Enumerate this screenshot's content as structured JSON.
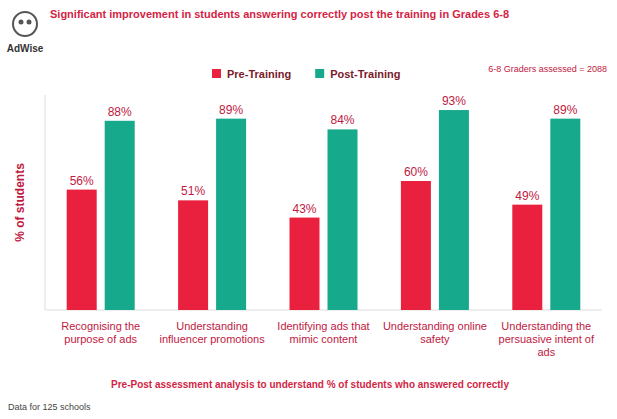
{
  "chart_data": {
    "type": "bar",
    "title": "Significant improvement in students answering correctly post the training in Grades 6-8",
    "logo": "AdWise",
    "note": "6-8 Graders assessed = 2088",
    "y_label": "% of students",
    "caption": "Pre-Post assessment analysis to understand % of students who answered correctly",
    "source": "Data for 125 schools",
    "categories": [
      "Recognising the purpose of ads",
      "Understanding influencer promotions",
      "Identifying ads that mimic content",
      "Understanding online safety",
      "Understanding the persuasive intent of ads"
    ],
    "series": [
      {
        "name": "Pre-Training",
        "color": "#e9213f",
        "values": [
          56,
          51,
          43,
          60,
          49
        ],
        "value_labels": [
          "56%",
          "51%",
          "43%",
          "60%",
          "49%"
        ]
      },
      {
        "name": "Post-Training",
        "color": "#17a98b",
        "values": [
          88,
          89,
          84,
          93,
          89
        ],
        "value_labels": [
          "88%",
          "89%",
          "84%",
          "93%",
          "89%"
        ]
      }
    ],
    "ylim": [
      0,
      100
    ],
    "tick_labels": false,
    "data_labels": true,
    "legend": "top",
    "grid": false
  }
}
